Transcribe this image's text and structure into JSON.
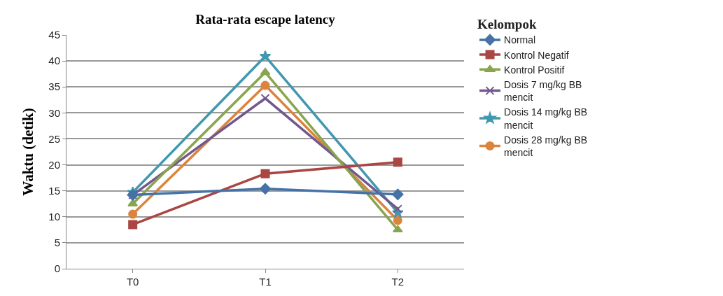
{
  "chart_data": {
    "type": "line",
    "title": "Rata-rata escape latency",
    "ylabel": "Waktu (detik)",
    "legend_title": "Kelompok",
    "categories": [
      "T0",
      "T1",
      "T2"
    ],
    "ylim": [
      0,
      45
    ],
    "yticks": [
      0,
      5,
      10,
      15,
      20,
      25,
      30,
      35,
      40,
      45
    ],
    "grid": "y",
    "legend": "right",
    "line_style": "solid",
    "series": [
      {
        "name": "Normal",
        "color": "#4572a7",
        "marker": "diamond",
        "values": [
          14.2,
          15.4,
          14.3
        ]
      },
      {
        "name": "Kontrol Negatif",
        "color": "#aa4643",
        "marker": "square",
        "values": [
          8.5,
          18.3,
          20.5
        ]
      },
      {
        "name": "Kontrol Positif",
        "color": "#89a54e",
        "marker": "triangle",
        "values": [
          12.5,
          37.8,
          7.5
        ]
      },
      {
        "name": "Dosis 7 mg/kg BB mencit",
        "color": "#71588f",
        "marker": "cross",
        "values": [
          14.2,
          32.8,
          11.5
        ]
      },
      {
        "name": "Dosis 14 mg/kg BB mencit",
        "color": "#4198af",
        "marker": "star",
        "values": [
          14.7,
          40.9,
          10.8
        ]
      },
      {
        "name": "Dosis 28 mg/kg BB mencit",
        "color": "#db843d",
        "marker": "circle",
        "values": [
          10.5,
          35.3,
          9.3
        ]
      }
    ]
  }
}
